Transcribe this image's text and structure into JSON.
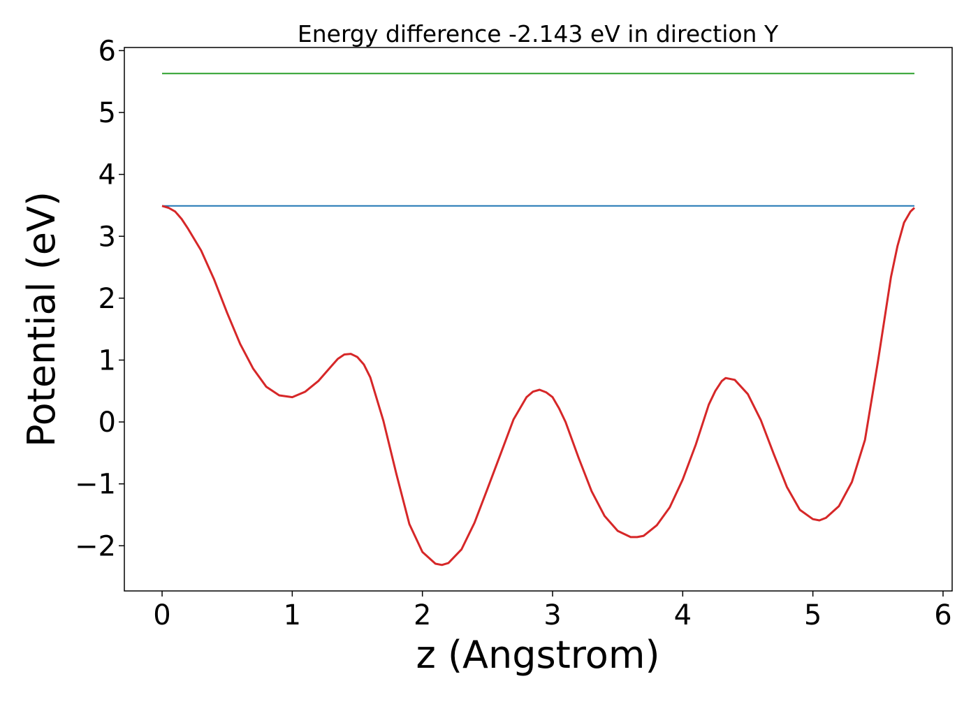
{
  "chart_data": {
    "type": "line",
    "title": "Energy difference -2.143 eV in direction Y",
    "xlabel": "z (Angstrom)",
    "ylabel": "Potential (eV)",
    "xlim": [
      -0.29,
      6.07
    ],
    "ylim": [
      -2.73,
      6.05
    ],
    "xticks": [
      0,
      1,
      2,
      3,
      4,
      5,
      6
    ],
    "yticks": [
      -2,
      -1,
      0,
      1,
      2,
      3,
      4,
      5,
      6
    ],
    "xtick_labels": [
      "0",
      "1",
      "2",
      "3",
      "4",
      "5",
      "6"
    ],
    "ytick_labels": [
      "−2",
      "−1",
      "0",
      "1",
      "2",
      "3",
      "4",
      "5",
      "6"
    ],
    "grid": false,
    "legend": false,
    "series": [
      {
        "color": "#2ca02c",
        "x": [
          0,
          5.78
        ],
        "y": [
          5.63,
          5.63
        ]
      },
      {
        "color": "#1f77b4",
        "x": [
          0,
          5.78
        ],
        "y": [
          3.49,
          3.49
        ]
      },
      {
        "color": "#d62728",
        "x": [
          0,
          0.05,
          0.1,
          0.15,
          0.2,
          0.3,
          0.4,
          0.5,
          0.6,
          0.7,
          0.8,
          0.9,
          1.0,
          1.1,
          1.2,
          1.3,
          1.35,
          1.4,
          1.45,
          1.5,
          1.55,
          1.6,
          1.7,
          1.8,
          1.9,
          2.0,
          2.1,
          2.15,
          2.2,
          2.3,
          2.4,
          2.5,
          2.6,
          2.7,
          2.8,
          2.85,
          2.9,
          2.95,
          3.0,
          3.05,
          3.1,
          3.2,
          3.3,
          3.4,
          3.5,
          3.6,
          3.65,
          3.7,
          3.8,
          3.9,
          4.0,
          4.1,
          4.2,
          4.25,
          4.3,
          4.33,
          4.4,
          4.5,
          4.6,
          4.7,
          4.8,
          4.9,
          5.0,
          5.05,
          5.1,
          5.2,
          5.3,
          5.4,
          5.5,
          5.6,
          5.65,
          5.7,
          5.75,
          5.78
        ],
        "y": [
          3.49,
          3.46,
          3.4,
          3.28,
          3.12,
          2.77,
          2.3,
          1.76,
          1.26,
          0.86,
          0.57,
          0.43,
          0.4,
          0.49,
          0.66,
          0.9,
          1.02,
          1.09,
          1.1,
          1.05,
          0.93,
          0.72,
          0.02,
          -0.84,
          -1.65,
          -2.1,
          -2.29,
          -2.31,
          -2.28,
          -2.06,
          -1.63,
          -1.08,
          -0.52,
          0.04,
          0.4,
          0.49,
          0.52,
          0.48,
          0.4,
          0.22,
          0.0,
          -0.58,
          -1.12,
          -1.52,
          -1.76,
          -1.86,
          -1.86,
          -1.84,
          -1.67,
          -1.38,
          -0.93,
          -0.37,
          0.28,
          0.5,
          0.66,
          0.71,
          0.68,
          0.45,
          0.03,
          -0.52,
          -1.05,
          -1.42,
          -1.57,
          -1.59,
          -1.55,
          -1.36,
          -0.97,
          -0.29,
          0.98,
          2.34,
          2.84,
          3.22,
          3.4,
          3.46
        ]
      }
    ]
  }
}
